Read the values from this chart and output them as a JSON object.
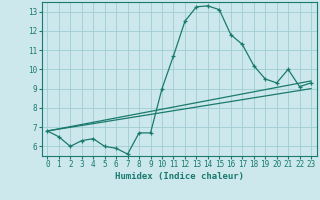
{
  "title": "",
  "xlabel": "Humidex (Indice chaleur)",
  "xlim": [
    -0.5,
    23.5
  ],
  "ylim": [
    5.5,
    13.5
  ],
  "xticks": [
    0,
    1,
    2,
    3,
    4,
    5,
    6,
    7,
    8,
    9,
    10,
    11,
    12,
    13,
    14,
    15,
    16,
    17,
    18,
    19,
    20,
    21,
    22,
    23
  ],
  "yticks": [
    6,
    7,
    8,
    9,
    10,
    11,
    12,
    13
  ],
  "bg_color": "#cce8ec",
  "grid_color": "#9ecdd4",
  "line_color": "#1a7a6e",
  "line1_x": [
    0,
    1,
    2,
    3,
    4,
    5,
    6,
    7,
    8,
    9,
    10,
    11,
    12,
    13,
    14,
    15,
    16,
    17,
    18,
    19,
    20,
    21,
    22,
    23
  ],
  "line1_y": [
    6.8,
    6.5,
    6.0,
    6.3,
    6.4,
    6.0,
    5.9,
    5.6,
    6.7,
    6.7,
    9.0,
    10.7,
    12.5,
    13.25,
    13.3,
    13.1,
    11.8,
    11.3,
    10.2,
    9.5,
    9.3,
    10.0,
    9.1,
    9.3
  ],
  "line2_x": [
    0,
    23
  ],
  "line2_y": [
    6.8,
    9.4
  ],
  "line3_x": [
    0,
    23
  ],
  "line3_y": [
    6.8,
    9.0
  ]
}
